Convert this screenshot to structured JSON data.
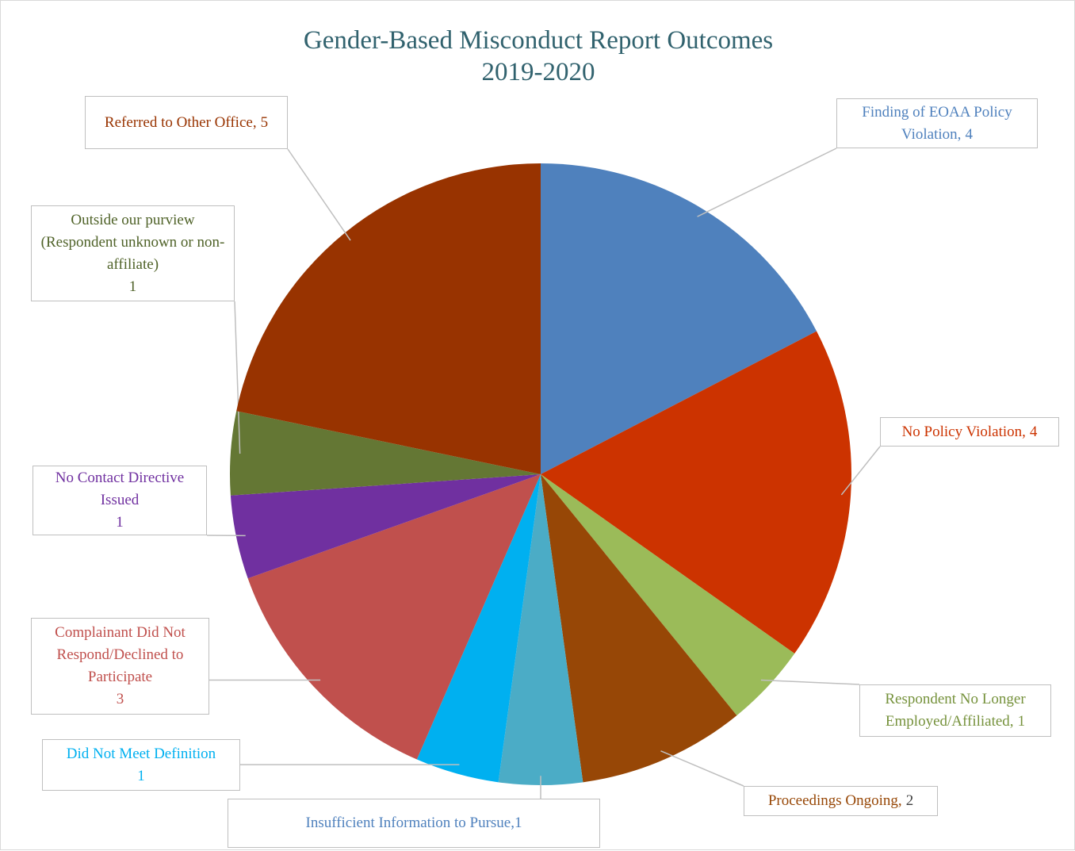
{
  "chart_data": {
    "type": "pie",
    "title": "Gender-Based Misconduct Report Outcomes",
    "subtitle": "2019-2020",
    "categories": [
      "Finding of EOAA Policy Violation,",
      "No Policy Violation,",
      "Respondent No Longer Employed/Affiliated,",
      "Proceedings Ongoing,",
      "Insufficient Information to Pursue,",
      "Did Not Meet Definition",
      "Complainant Did Not Respond/Declined to Participate",
      "No Contact Directive Issued",
      "Outside our purview (Respondent unknown or non-affiliate)",
      "Referred to Other Office,"
    ],
    "values": [
      4,
      4,
      1,
      2,
      1,
      1,
      3,
      1,
      1,
      5
    ],
    "colors": [
      "#4f81bd",
      "#cc3300",
      "#9bbb59",
      "#974706",
      "#4bacc6",
      "#00b0f0",
      "#c0504d",
      "#7030a0",
      "#647734",
      "#983300"
    ],
    "label_colors": [
      "#4f81bd",
      "#cc3300",
      "#76923c",
      "#974706",
      "#4f81bd",
      "#00b0f0",
      "#c0504d",
      "#7030a0",
      "#4f6228",
      "#983300"
    ]
  }
}
